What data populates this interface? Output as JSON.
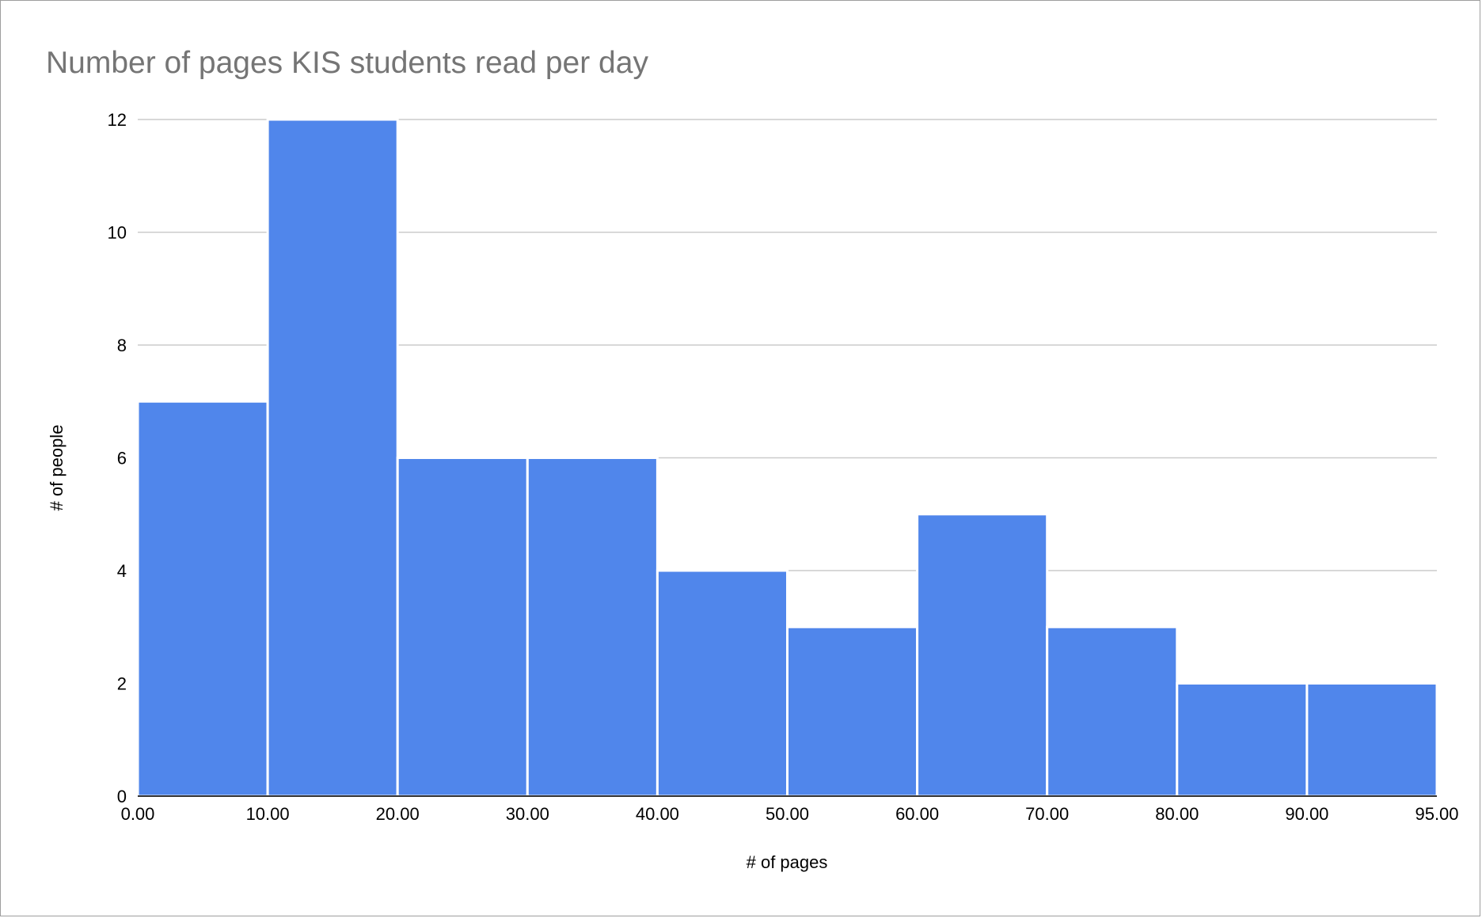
{
  "chart_data": {
    "type": "bar",
    "title": "Number of pages KIS students read per day",
    "xlabel": "# of pages",
    "ylabel": "# of people",
    "bins": [
      {
        "from": 0,
        "to": 10,
        "value": 7
      },
      {
        "from": 10,
        "to": 20,
        "value": 12
      },
      {
        "from": 20,
        "to": 30,
        "value": 6
      },
      {
        "from": 30,
        "to": 40,
        "value": 6
      },
      {
        "from": 40,
        "to": 50,
        "value": 4
      },
      {
        "from": 50,
        "to": 60,
        "value": 3
      },
      {
        "from": 60,
        "to": 70,
        "value": 5
      },
      {
        "from": 70,
        "to": 80,
        "value": 3
      },
      {
        "from": 80,
        "to": 90,
        "value": 2
      },
      {
        "from": 90,
        "to": 95,
        "value": 2
      }
    ],
    "x_tick_labels": [
      "0.00",
      "10.00",
      "20.00",
      "30.00",
      "40.00",
      "50.00",
      "60.00",
      "70.00",
      "80.00",
      "90.00",
      "95.00"
    ],
    "y_tick_labels": [
      "0",
      "2",
      "4",
      "6",
      "8",
      "10",
      "12"
    ],
    "ylim": [
      0,
      12
    ],
    "grid": true,
    "bar_color": "#5086EB"
  }
}
